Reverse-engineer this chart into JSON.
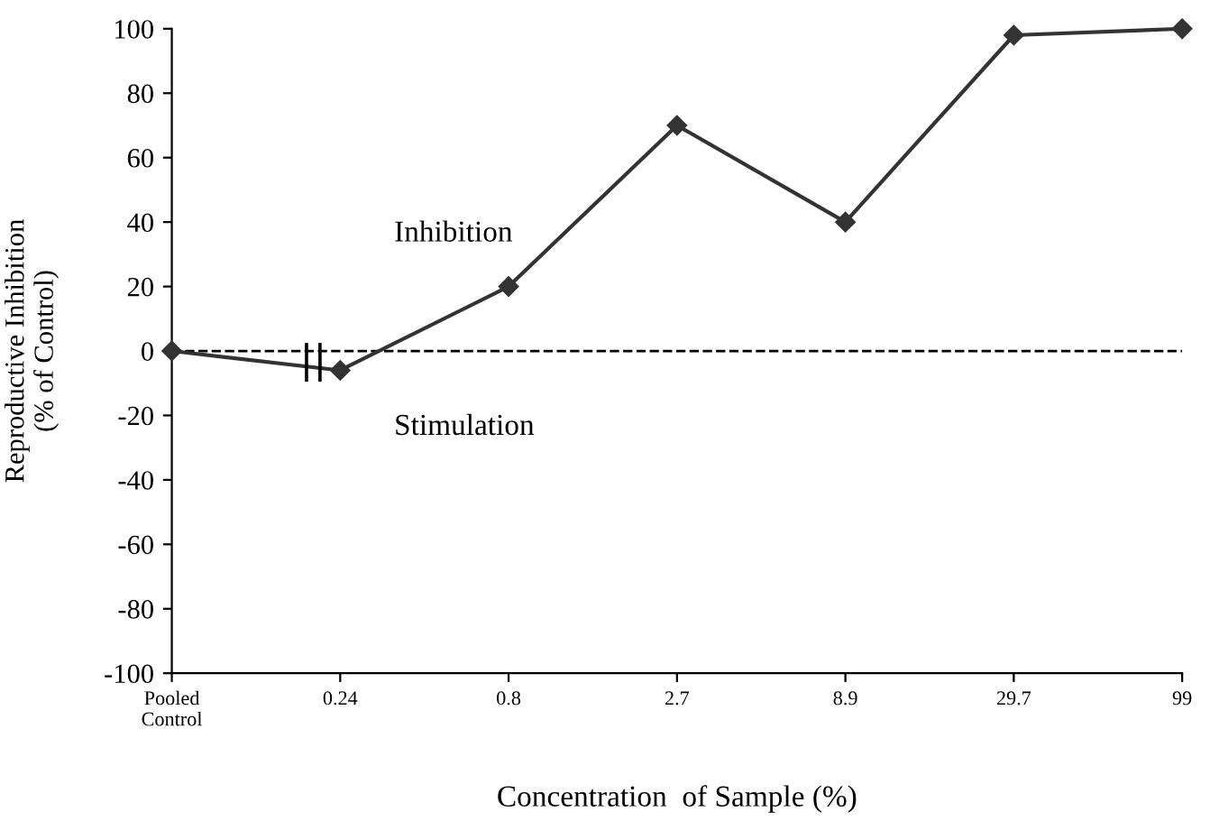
{
  "chart_data": {
    "type": "line",
    "xlabel": "Concentration  of Sample (%)",
    "ylabel": "Reproductive Inhibition\n(% of Control)",
    "categories": [
      "Pooled\nControl",
      "0.24",
      "0.8",
      "2.7",
      "8.9",
      "29.7",
      "99"
    ],
    "series": [
      {
        "color": "#333333",
        "values": [
          0,
          -6,
          20,
          70,
          40,
          98,
          100
        ]
      }
    ],
    "ylim": [
      -100,
      100
    ],
    "yticks": [
      -100,
      -80,
      -60,
      -40,
      -20,
      0,
      20,
      40,
      60,
      80,
      100
    ],
    "ref_lines": [
      {
        "axis": "y",
        "value": 0,
        "color": "#000000",
        "line_style": "dashed"
      }
    ],
    "annotations": [
      "Inhibition",
      "Stimulation"
    ],
    "marker": "diamond",
    "line_style": "solid",
    "grid": false,
    "legend": false
  }
}
